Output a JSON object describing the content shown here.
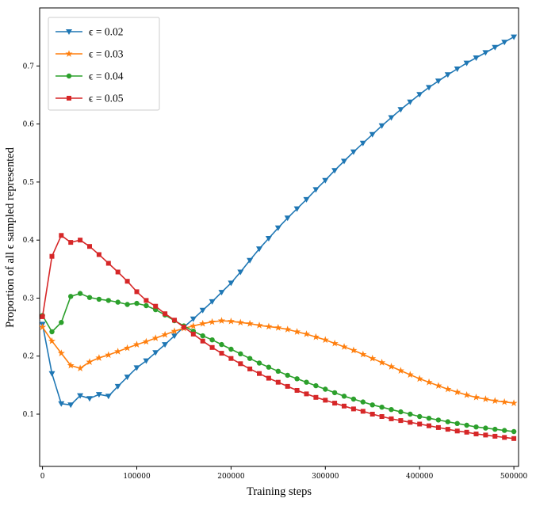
{
  "figure": {
    "background": "#ffffff"
  },
  "chart_data": {
    "type": "line",
    "title": "",
    "xlabel": "Training steps",
    "ylabel": "Proportion of all ϵ sampled represented",
    "xlim": [
      -3000,
      505000
    ],
    "ylim": [
      0.01,
      0.8
    ],
    "grid": false,
    "legend_position": "upper-left",
    "xticks": [
      0,
      100000,
      200000,
      300000,
      400000,
      500000
    ],
    "xtick_labels": [
      "0",
      "100000",
      "200000",
      "300000",
      "400000",
      "500000"
    ],
    "yticks": [
      0.1,
      0.2,
      0.3,
      0.4,
      0.5,
      0.6,
      0.7
    ],
    "ytick_labels": [
      "0.1",
      "0.2",
      "0.3",
      "0.4",
      "0.5",
      "0.6",
      "0.7"
    ],
    "x": [
      0,
      10000,
      20000,
      30000,
      40000,
      50000,
      60000,
      70000,
      80000,
      90000,
      100000,
      110000,
      120000,
      130000,
      140000,
      150000,
      160000,
      170000,
      180000,
      190000,
      200000,
      210000,
      220000,
      230000,
      240000,
      250000,
      260000,
      270000,
      280000,
      290000,
      300000,
      310000,
      320000,
      330000,
      340000,
      350000,
      360000,
      370000,
      380000,
      390000,
      400000,
      410000,
      420000,
      430000,
      440000,
      450000,
      460000,
      470000,
      480000,
      490000,
      500000
    ],
    "series": [
      {
        "name": "ϵ = 0.02",
        "color": "#1f77b4",
        "marker": "triangle-down",
        "values": [
          0.255,
          0.17,
          0.118,
          0.116,
          0.132,
          0.127,
          0.134,
          0.131,
          0.148,
          0.164,
          0.18,
          0.192,
          0.206,
          0.22,
          0.235,
          0.25,
          0.264,
          0.279,
          0.294,
          0.31,
          0.326,
          0.345,
          0.365,
          0.385,
          0.403,
          0.421,
          0.438,
          0.454,
          0.47,
          0.487,
          0.503,
          0.52,
          0.536,
          0.552,
          0.567,
          0.582,
          0.597,
          0.611,
          0.625,
          0.638,
          0.651,
          0.663,
          0.674,
          0.685,
          0.695,
          0.705,
          0.714,
          0.723,
          0.732,
          0.741,
          0.75
        ]
      },
      {
        "name": "ϵ = 0.03",
        "color": "#ff7f0e",
        "marker": "star",
        "values": [
          0.25,
          0.226,
          0.205,
          0.184,
          0.179,
          0.19,
          0.197,
          0.202,
          0.208,
          0.214,
          0.22,
          0.225,
          0.231,
          0.237,
          0.243,
          0.248,
          0.252,
          0.256,
          0.259,
          0.261,
          0.26,
          0.258,
          0.256,
          0.253,
          0.251,
          0.249,
          0.246,
          0.242,
          0.238,
          0.233,
          0.228,
          0.222,
          0.216,
          0.21,
          0.203,
          0.196,
          0.189,
          0.182,
          0.175,
          0.168,
          0.161,
          0.155,
          0.149,
          0.143,
          0.138,
          0.133,
          0.129,
          0.126,
          0.123,
          0.121,
          0.119
        ]
      },
      {
        "name": "ϵ = 0.04",
        "color": "#2ca02c",
        "marker": "circle",
        "values": [
          0.27,
          0.242,
          0.258,
          0.303,
          0.308,
          0.301,
          0.298,
          0.296,
          0.293,
          0.289,
          0.291,
          0.287,
          0.28,
          0.271,
          0.261,
          0.252,
          0.243,
          0.235,
          0.228,
          0.22,
          0.212,
          0.204,
          0.196,
          0.188,
          0.181,
          0.174,
          0.167,
          0.161,
          0.155,
          0.149,
          0.143,
          0.137,
          0.131,
          0.126,
          0.121,
          0.116,
          0.112,
          0.108,
          0.104,
          0.1,
          0.096,
          0.093,
          0.09,
          0.087,
          0.084,
          0.081,
          0.078,
          0.076,
          0.074,
          0.072,
          0.07
        ]
      },
      {
        "name": "ϵ = 0.05",
        "color": "#d62728",
        "marker": "square",
        "values": [
          0.268,
          0.372,
          0.408,
          0.396,
          0.4,
          0.389,
          0.375,
          0.36,
          0.345,
          0.329,
          0.311,
          0.296,
          0.286,
          0.273,
          0.262,
          0.25,
          0.238,
          0.226,
          0.215,
          0.205,
          0.196,
          0.187,
          0.178,
          0.17,
          0.162,
          0.155,
          0.148,
          0.141,
          0.135,
          0.129,
          0.124,
          0.119,
          0.114,
          0.109,
          0.105,
          0.1,
          0.096,
          0.092,
          0.089,
          0.086,
          0.083,
          0.08,
          0.077,
          0.074,
          0.071,
          0.069,
          0.066,
          0.064,
          0.062,
          0.06,
          0.058
        ]
      }
    ]
  }
}
